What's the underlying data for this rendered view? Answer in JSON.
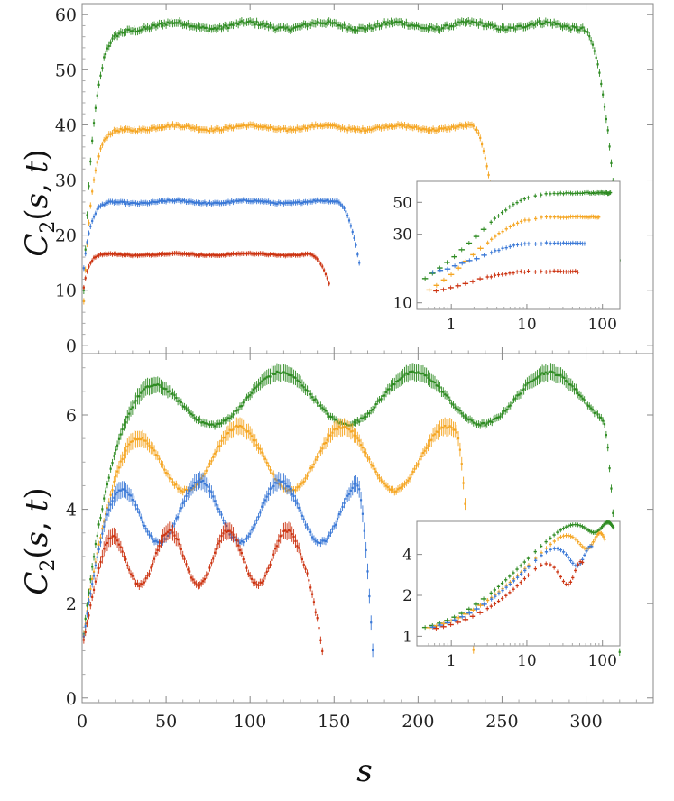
{
  "chart_data": [
    {
      "type": "scatter",
      "panel": "top",
      "ylabel": "C2(s,t)",
      "xlabel": "s",
      "xlim": [
        0,
        340
      ],
      "ylim": [
        -1.5,
        62
      ],
      "x_ticks": [
        0,
        50,
        100,
        150,
        200,
        250,
        300
      ],
      "y_ticks": [
        "0",
        "10",
        "20",
        "30",
        "40",
        "50",
        "60"
      ],
      "error_bars": true,
      "series": [
        {
          "name": "green",
          "color": "#2e8b22",
          "length": 320,
          "plateau": 58,
          "start": 10,
          "rise": 6
        },
        {
          "name": "orange",
          "color": "#f5a623",
          "length": 250,
          "plateau": 39.5,
          "start": 8,
          "rise": 5
        },
        {
          "name": "blue",
          "color": "#3a78d6",
          "length": 165,
          "plateau": 26,
          "start": 14,
          "rise": 4
        },
        {
          "name": "red",
          "color": "#cc3311",
          "length": 147,
          "plateau": 16.5,
          "start": 10.5,
          "rise": 3
        }
      ],
      "inset": {
        "type": "scatter",
        "xscale": "log",
        "yscale": "log",
        "xlim": [
          0.35,
          170
        ],
        "ylim": [
          9,
          70
        ],
        "x_ticks": [
          "1",
          "10",
          "100"
        ],
        "y_ticks": [
          "10",
          "30",
          "50"
        ],
        "plateaus": [
          58,
          39.5,
          26,
          16.5
        ]
      }
    },
    {
      "type": "scatter",
      "panel": "bottom",
      "ylabel": "C2(s,t)",
      "xlabel": "s",
      "xlim": [
        0,
        340
      ],
      "ylim": [
        -0.1,
        7.3
      ],
      "x_ticks": [
        "0",
        "50",
        "100",
        "150",
        "200",
        "250",
        "300"
      ],
      "y_ticks": [
        "0",
        "2",
        "4",
        "6"
      ],
      "error_bars": true,
      "series": [
        {
          "name": "green",
          "color": "#2e8b22",
          "length": 320,
          "peak": 6.9,
          "trough": 5.8,
          "period": 80,
          "first_peak": 38
        },
        {
          "name": "orange",
          "color": "#f5a623",
          "length": 233,
          "peak": 5.75,
          "trough": 4.4,
          "period": 62,
          "first_peak": 31
        },
        {
          "name": "blue",
          "color": "#3a78d6",
          "length": 173,
          "peak": 4.6,
          "trough": 3.3,
          "period": 48,
          "first_peak": 22
        },
        {
          "name": "red",
          "color": "#cc3311",
          "length": 143,
          "peak": 3.55,
          "trough": 2.4,
          "period": 35,
          "first_peak": 17
        }
      ],
      "inset": {
        "type": "scatter",
        "xscale": "log",
        "yscale": "log",
        "xlim": [
          0.35,
          170
        ],
        "ylim": [
          0.85,
          7
        ],
        "x_ticks": [
          "1",
          "10",
          "100"
        ],
        "y_ticks": [
          "1",
          "2",
          "4"
        ]
      }
    }
  ],
  "labels": {
    "ylabel_top": "C2(s,t)",
    "ylabel_bottom": "C2(s,t)",
    "xlabel": "s"
  }
}
